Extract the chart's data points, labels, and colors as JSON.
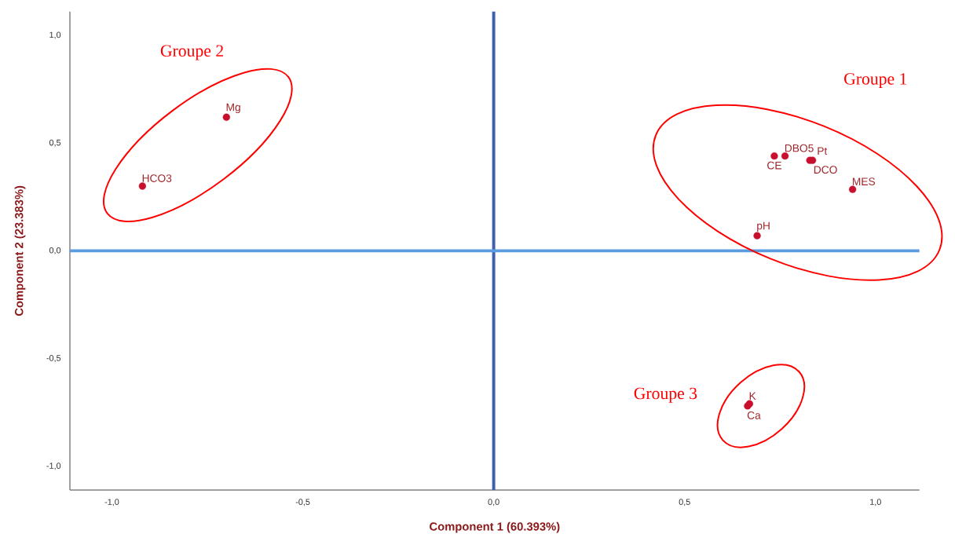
{
  "chart_data": {
    "type": "scatter",
    "xlabel": "Component 1 (60.393%)",
    "ylabel": "Component 2 (23.383%)",
    "xlim": [
      -1.11,
      1.115
    ],
    "ylim": [
      -1.11,
      1.11
    ],
    "xticks": [
      {
        "value": -1,
        "label": "-1,0"
      },
      {
        "value": -0.5,
        "label": "-0,5"
      },
      {
        "value": 0,
        "label": "0,0"
      },
      {
        "value": 0.5,
        "label": "0,5"
      },
      {
        "value": 1,
        "label": "1,0"
      }
    ],
    "yticks": [
      {
        "value": -1,
        "label": "-1,0"
      },
      {
        "value": -0.5,
        "label": "-0,5"
      },
      {
        "value": 0,
        "label": "0,0"
      },
      {
        "value": 0.5,
        "label": "0,5"
      },
      {
        "value": 1,
        "label": "1,0"
      }
    ],
    "marker": "circle",
    "grid": false,
    "series": [
      {
        "name": "HCO3",
        "color": "#c8102e",
        "x": [
          -0.92
        ],
        "values": [
          0.3
        ]
      },
      {
        "name": "Mg",
        "color": "#c8102e",
        "x": [
          -0.7
        ],
        "values": [
          0.62
        ]
      },
      {
        "name": "CE",
        "color": "#c8102e",
        "x": [
          0.735
        ],
        "values": [
          0.44
        ]
      },
      {
        "name": "DBO5",
        "color": "#c8102e",
        "x": [
          0.763
        ],
        "values": [
          0.44
        ]
      },
      {
        "name": "Pt",
        "color": "#c8102e",
        "x": [
          0.828
        ],
        "values": [
          0.42
        ]
      },
      {
        "name": "DCO",
        "color": "#c8102e",
        "x": [
          0.835
        ],
        "values": [
          0.42
        ]
      },
      {
        "name": "MES",
        "color": "#c8102e",
        "x": [
          0.94
        ],
        "values": [
          0.285
        ]
      },
      {
        "name": "pH",
        "color": "#c8102e",
        "x": [
          0.69
        ],
        "values": [
          0.07
        ]
      },
      {
        "name": "K",
        "color": "#c8102e",
        "x": [
          0.67
        ],
        "values": [
          -0.71
        ]
      },
      {
        "name": "Ca",
        "color": "#c8102e",
        "x": [
          0.665
        ],
        "values": [
          -0.72
        ]
      }
    ],
    "ref_lines": [
      {
        "axis": "x",
        "value": 0,
        "color": "#3f5fb0"
      },
      {
        "axis": "y",
        "value": 0,
        "color": "#5b9be0"
      }
    ],
    "annotations": [
      "Groupe 1",
      "Groupe 2",
      "Groupe 3"
    ]
  }
}
